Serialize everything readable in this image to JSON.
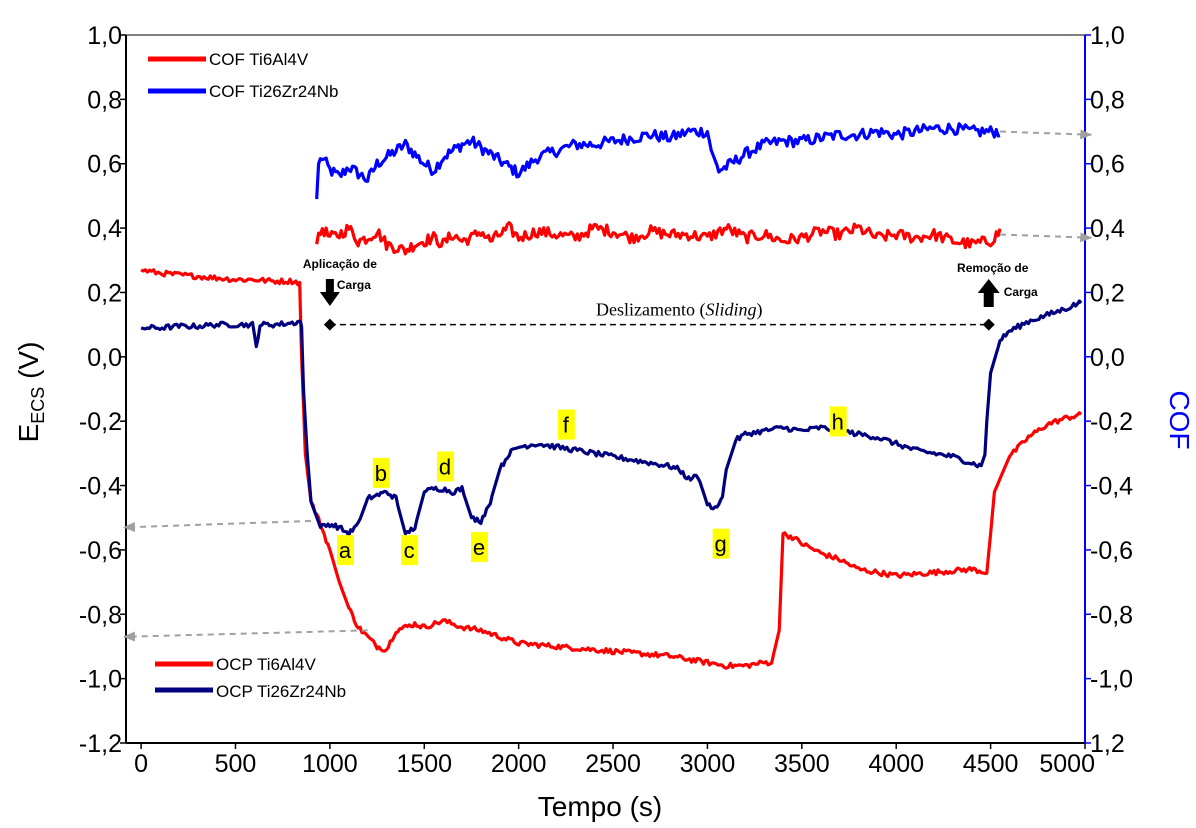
{
  "chart_data": {
    "type": "line",
    "xlabel": "Tempo (s)",
    "ylabel_left_main": "E",
    "ylabel_left_sub": "ECS",
    "ylabel_left_unit": " (V)",
    "ylabel_right": "COF",
    "xlim": [
      -80,
      5000
    ],
    "ylim_left": [
      -1.2,
      1.0
    ],
    "ylim_right": [
      1.2,
      1.0
    ],
    "x_ticks": [
      "0",
      "500",
      "1000",
      "1500",
      "2000",
      "2500",
      "3000",
      "3500",
      "4000",
      "4500",
      "5000"
    ],
    "y_ticks_left": [
      "1,0",
      "0,8",
      "0,6",
      "0,4",
      "0,2",
      "0,0",
      "-0,2",
      "-0,4",
      "-0,6",
      "-0,8",
      "-1,0",
      "-1,2"
    ],
    "y_ticks_right": [
      "1,0",
      "0,8",
      "0,6",
      "0,4",
      "0,2",
      "0,0",
      "-0,2",
      "-0,4",
      "-0,6",
      "-0,8",
      "-1,0",
      "1,2"
    ],
    "colors": {
      "cof_ti6al4v": "#ff0000",
      "cof_ti26zr24nb": "#0000ff",
      "ocp_ti6al4v": "#ff0000",
      "ocp_ti26zr24nb": "#00007f",
      "right_axis": "#0000ff",
      "point_label_bg": "#ffff00",
      "guide_arrow": "#a0a0a0"
    },
    "legend_top": [
      {
        "name": "COF Ti6Al4V",
        "color": "#ff0000"
      },
      {
        "name": "COF Ti26Zr24Nb",
        "color": "#0000ff"
      }
    ],
    "legend_bottom": [
      {
        "name": "OCP Ti6Al4V",
        "color": "#ff0000"
      },
      {
        "name": "OCP Ti26Zr24Nb",
        "color": "#00007f"
      }
    ],
    "series": [
      {
        "name": "COF Ti26Zr24Nb",
        "axis": "left",
        "x": [
          930,
          940,
          960,
          1000,
          1050,
          1100,
          1150,
          1200,
          1250,
          1300,
          1350,
          1400,
          1450,
          1500,
          1550,
          1600,
          1650,
          1700,
          1750,
          1800,
          1850,
          1900,
          1950,
          2000,
          2100,
          2200,
          2300,
          2400,
          2500,
          2600,
          2700,
          2800,
          2900,
          3000,
          3030,
          3060,
          3100,
          3150,
          3200,
          3300,
          3400,
          3500,
          3600,
          3700,
          3800,
          3900,
          4000,
          4100,
          4200,
          4300,
          4400,
          4500,
          4550
        ],
        "y": [
          0.49,
          0.6,
          0.62,
          0.58,
          0.56,
          0.59,
          0.57,
          0.55,
          0.6,
          0.62,
          0.64,
          0.66,
          0.63,
          0.6,
          0.58,
          0.62,
          0.64,
          0.66,
          0.67,
          0.65,
          0.63,
          0.61,
          0.59,
          0.57,
          0.62,
          0.64,
          0.66,
          0.66,
          0.67,
          0.68,
          0.69,
          0.68,
          0.7,
          0.7,
          0.62,
          0.58,
          0.59,
          0.61,
          0.63,
          0.66,
          0.67,
          0.67,
          0.68,
          0.69,
          0.69,
          0.7,
          0.69,
          0.7,
          0.71,
          0.71,
          0.7,
          0.7,
          0.7
        ]
      },
      {
        "name": "COF Ti6Al4V",
        "axis": "left",
        "x": [
          930,
          960,
          1000,
          1050,
          1100,
          1150,
          1200,
          1250,
          1300,
          1350,
          1400,
          1450,
          1500,
          1550,
          1600,
          1650,
          1700,
          1750,
          1800,
          1850,
          1900,
          1950,
          2000,
          2100,
          2200,
          2300,
          2400,
          2500,
          2600,
          2700,
          2800,
          2900,
          3000,
          3100,
          3200,
          3300,
          3400,
          3500,
          3600,
          3700,
          3800,
          3900,
          4000,
          4100,
          4200,
          4300,
          4400,
          4500,
          4550
        ],
        "y": [
          0.35,
          0.4,
          0.37,
          0.38,
          0.4,
          0.36,
          0.37,
          0.39,
          0.35,
          0.34,
          0.33,
          0.35,
          0.36,
          0.37,
          0.35,
          0.38,
          0.36,
          0.37,
          0.39,
          0.36,
          0.38,
          0.4,
          0.37,
          0.39,
          0.38,
          0.37,
          0.4,
          0.39,
          0.37,
          0.39,
          0.38,
          0.38,
          0.37,
          0.4,
          0.37,
          0.38,
          0.36,
          0.37,
          0.39,
          0.38,
          0.4,
          0.37,
          0.38,
          0.37,
          0.38,
          0.36,
          0.35,
          0.36,
          0.39
        ]
      },
      {
        "name": "OCP Ti6Al4V",
        "axis": "left",
        "x": [
          0,
          100,
          200,
          300,
          400,
          500,
          600,
          700,
          800,
          840,
          850,
          870,
          900,
          950,
          1000,
          1050,
          1100,
          1150,
          1200,
          1250,
          1300,
          1350,
          1400,
          1450,
          1500,
          1600,
          1700,
          1800,
          1900,
          2000,
          2200,
          2400,
          2600,
          2800,
          3000,
          3100,
          3200,
          3300,
          3340,
          3380,
          3400,
          3450,
          3500,
          3600,
          3700,
          3800,
          3900,
          4000,
          4200,
          4400,
          4480,
          4500,
          4520,
          4600,
          4700,
          4800,
          4900,
          4980
        ],
        "y": [
          0.27,
          0.26,
          0.255,
          0.25,
          0.245,
          0.24,
          0.24,
          0.235,
          0.235,
          0.23,
          0.0,
          -0.3,
          -0.45,
          -0.52,
          -0.6,
          -0.7,
          -0.78,
          -0.84,
          -0.87,
          -0.9,
          -0.91,
          -0.85,
          -0.84,
          -0.83,
          -0.84,
          -0.82,
          -0.84,
          -0.85,
          -0.87,
          -0.89,
          -0.9,
          -0.91,
          -0.92,
          -0.93,
          -0.95,
          -0.96,
          -0.96,
          -0.95,
          -0.95,
          -0.85,
          -0.55,
          -0.56,
          -0.58,
          -0.61,
          -0.63,
          -0.66,
          -0.67,
          -0.68,
          -0.67,
          -0.66,
          -0.67,
          -0.55,
          -0.42,
          -0.31,
          -0.25,
          -0.21,
          -0.19,
          -0.18
        ]
      },
      {
        "name": "OCP Ti26Zr24Nb",
        "axis": "left",
        "x": [
          0,
          100,
          200,
          300,
          400,
          500,
          590,
          610,
          630,
          700,
          800,
          840,
          850,
          860,
          880,
          900,
          950,
          1000,
          1050,
          1100,
          1150,
          1200,
          1250,
          1300,
          1350,
          1400,
          1450,
          1500,
          1550,
          1600,
          1650,
          1700,
          1750,
          1800,
          1850,
          1900,
          1950,
          2000,
          2100,
          2200,
          2300,
          2400,
          2500,
          2600,
          2700,
          2800,
          2850,
          2900,
          2950,
          3000,
          3050,
          3080,
          3100,
          3150,
          3200,
          3300,
          3400,
          3500,
          3600,
          3700,
          3800,
          3900,
          4000,
          4100,
          4200,
          4300,
          4400,
          4450,
          4470,
          4480,
          4500,
          4550,
          4600,
          4700,
          4800,
          4900,
          4980
        ],
        "y": [
          0.09,
          0.09,
          0.095,
          0.095,
          0.1,
          0.1,
          0.1,
          0.03,
          0.1,
          0.1,
          0.105,
          0.11,
          0.1,
          -0.1,
          -0.3,
          -0.45,
          -0.53,
          -0.52,
          -0.53,
          -0.55,
          -0.52,
          -0.44,
          -0.43,
          -0.42,
          -0.44,
          -0.55,
          -0.53,
          -0.42,
          -0.41,
          -0.41,
          -0.42,
          -0.41,
          -0.5,
          -0.51,
          -0.45,
          -0.35,
          -0.3,
          -0.28,
          -0.27,
          -0.28,
          -0.29,
          -0.3,
          -0.31,
          -0.32,
          -0.33,
          -0.34,
          -0.35,
          -0.38,
          -0.37,
          -0.46,
          -0.47,
          -0.43,
          -0.35,
          -0.26,
          -0.24,
          -0.23,
          -0.22,
          -0.23,
          -0.22,
          -0.23,
          -0.24,
          -0.25,
          -0.27,
          -0.29,
          -0.3,
          -0.31,
          -0.33,
          -0.34,
          -0.3,
          -0.2,
          -0.05,
          0.05,
          0.08,
          0.11,
          0.13,
          0.15,
          0.17
        ]
      }
    ],
    "point_labels": [
      {
        "text": "a",
        "x": 1080,
        "y": -0.61
      },
      {
        "text": "b",
        "x": 1270,
        "y": -0.37
      },
      {
        "text": "c",
        "x": 1420,
        "y": -0.61
      },
      {
        "text": "d",
        "x": 1610,
        "y": -0.35
      },
      {
        "text": "e",
        "x": 1790,
        "y": -0.6
      },
      {
        "text": "f",
        "x": 2250,
        "y": -0.22
      },
      {
        "text": "g",
        "x": 3070,
        "y": -0.59
      },
      {
        "text": "h",
        "x": 3690,
        "y": -0.21
      }
    ],
    "annotations": {
      "load_apply_line1": "Aplicação de",
      "load_apply_line2": "Carga",
      "load_remove_line1": "Remoção de",
      "load_remove_line2": "Carga",
      "sliding_main": "Deslizamento (",
      "sliding_italic": "Sliding",
      "sliding_close": ")",
      "sliding_y": 0.1,
      "sliding_start_x": 1000,
      "sliding_end_x": 4490,
      "load_apply_x": 1000,
      "load_remove_x": 4490
    },
    "guide_arrows": [
      {
        "from_x": 4550,
        "from_y": 0.7,
        "to_x": 4980,
        "to_y": 0.69,
        "dir": "right"
      },
      {
        "from_x": 4550,
        "from_y": 0.38,
        "to_x": 4980,
        "to_y": 0.37,
        "dir": "right"
      },
      {
        "from_x": 900,
        "from_y": -0.51,
        "to_x": -80,
        "to_y": -0.53,
        "dir": "left"
      },
      {
        "from_x": 1200,
        "from_y": -0.85,
        "to_x": -80,
        "to_y": -0.87,
        "dir": "left"
      }
    ]
  }
}
